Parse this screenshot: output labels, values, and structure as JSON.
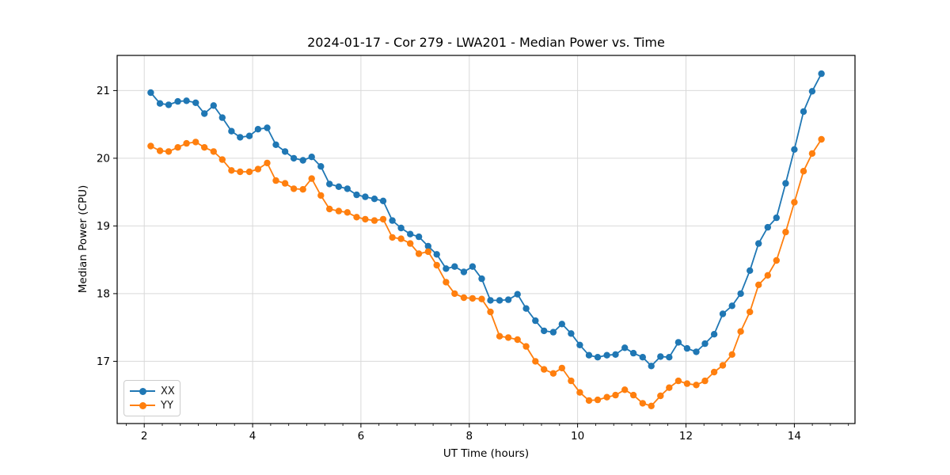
{
  "figure": {
    "title": "2024-01-17 - Cor 279 - LWA201 - Median Power vs. Time",
    "xlabel": "UT Time (hours)",
    "ylabel": "Median Power (CPU)"
  },
  "legend": {
    "items": [
      {
        "label": "XX",
        "color": "#1f77b4"
      },
      {
        "label": "YY",
        "color": "#ff7f0e"
      }
    ]
  },
  "chart_data": {
    "type": "line",
    "title": "2024-01-17 - Cor 279 - LWA201 - Median Power vs. Time",
    "xlabel": "UT Time (hours)",
    "ylabel": "Median Power (CPU)",
    "grid": true,
    "legend_position": "lower left",
    "marker": "o",
    "xlim": [
      1.5,
      15.12
    ],
    "ylim": [
      16.08,
      21.52
    ],
    "xticks": [
      2,
      4,
      6,
      8,
      10,
      12,
      14
    ],
    "yticks": [
      17,
      18,
      19,
      20,
      21
    ],
    "x_minor_tick_step": 0.3333,
    "x": [
      2.12,
      2.29,
      2.45,
      2.62,
      2.78,
      2.95,
      3.11,
      3.28,
      3.44,
      3.61,
      3.77,
      3.94,
      4.1,
      4.27,
      4.43,
      4.6,
      4.76,
      4.93,
      5.09,
      5.26,
      5.42,
      5.59,
      5.75,
      5.92,
      6.08,
      6.25,
      6.41,
      6.58,
      6.74,
      6.91,
      7.07,
      7.24,
      7.4,
      7.57,
      7.73,
      7.9,
      8.06,
      8.23,
      8.39,
      8.56,
      8.72,
      8.89,
      9.05,
      9.22,
      9.38,
      9.55,
      9.71,
      9.88,
      10.04,
      10.21,
      10.37,
      10.54,
      10.7,
      10.87,
      11.03,
      11.2,
      11.36,
      11.53,
      11.69,
      11.86,
      12.02,
      12.19,
      12.35,
      12.52,
      12.68,
      12.85,
      13.01,
      13.18,
      13.34,
      13.51,
      13.67,
      13.84,
      14.0,
      14.17,
      14.33,
      14.5
    ],
    "series": [
      {
        "name": "XX",
        "color": "#1f77b4",
        "values": [
          20.97,
          20.81,
          20.79,
          20.84,
          20.85,
          20.82,
          20.66,
          20.78,
          20.6,
          20.4,
          20.31,
          20.33,
          20.43,
          20.45,
          20.2,
          20.1,
          20.0,
          19.97,
          20.02,
          19.88,
          19.62,
          19.58,
          19.55,
          19.46,
          19.43,
          19.4,
          19.37,
          19.08,
          18.97,
          18.88,
          18.84,
          18.7,
          18.58,
          18.37,
          18.4,
          18.32,
          18.4,
          18.22,
          17.9,
          17.9,
          17.91,
          17.99,
          17.78,
          17.6,
          17.45,
          17.43,
          17.55,
          17.41,
          17.24,
          17.09,
          17.06,
          17.09,
          17.1,
          17.2,
          17.12,
          17.06,
          16.93,
          17.07,
          17.06,
          17.28,
          17.19,
          17.14,
          17.26,
          17.4,
          17.7,
          17.82,
          18.0,
          18.34,
          18.74,
          18.98,
          19.12,
          19.63,
          20.13,
          20.69,
          20.99,
          21.25
        ]
      },
      {
        "name": "YY",
        "color": "#ff7f0e",
        "values": [
          20.18,
          20.11,
          20.1,
          20.16,
          20.22,
          20.24,
          20.16,
          20.1,
          19.98,
          19.82,
          19.8,
          19.8,
          19.84,
          19.93,
          19.67,
          19.63,
          19.55,
          19.54,
          19.7,
          19.45,
          19.25,
          19.22,
          19.2,
          19.13,
          19.1,
          19.08,
          19.1,
          18.83,
          18.81,
          18.74,
          18.59,
          18.62,
          18.42,
          18.17,
          18.0,
          17.94,
          17.93,
          17.92,
          17.73,
          17.37,
          17.35,
          17.32,
          17.22,
          17.0,
          16.88,
          16.82,
          16.9,
          16.71,
          16.54,
          16.42,
          16.43,
          16.47,
          16.5,
          16.58,
          16.5,
          16.38,
          16.34,
          16.49,
          16.61,
          16.71,
          16.67,
          16.65,
          16.71,
          16.84,
          16.94,
          17.1,
          17.44,
          17.73,
          18.13,
          18.27,
          18.49,
          18.91,
          19.35,
          19.81,
          20.07,
          20.28
        ]
      }
    ]
  }
}
